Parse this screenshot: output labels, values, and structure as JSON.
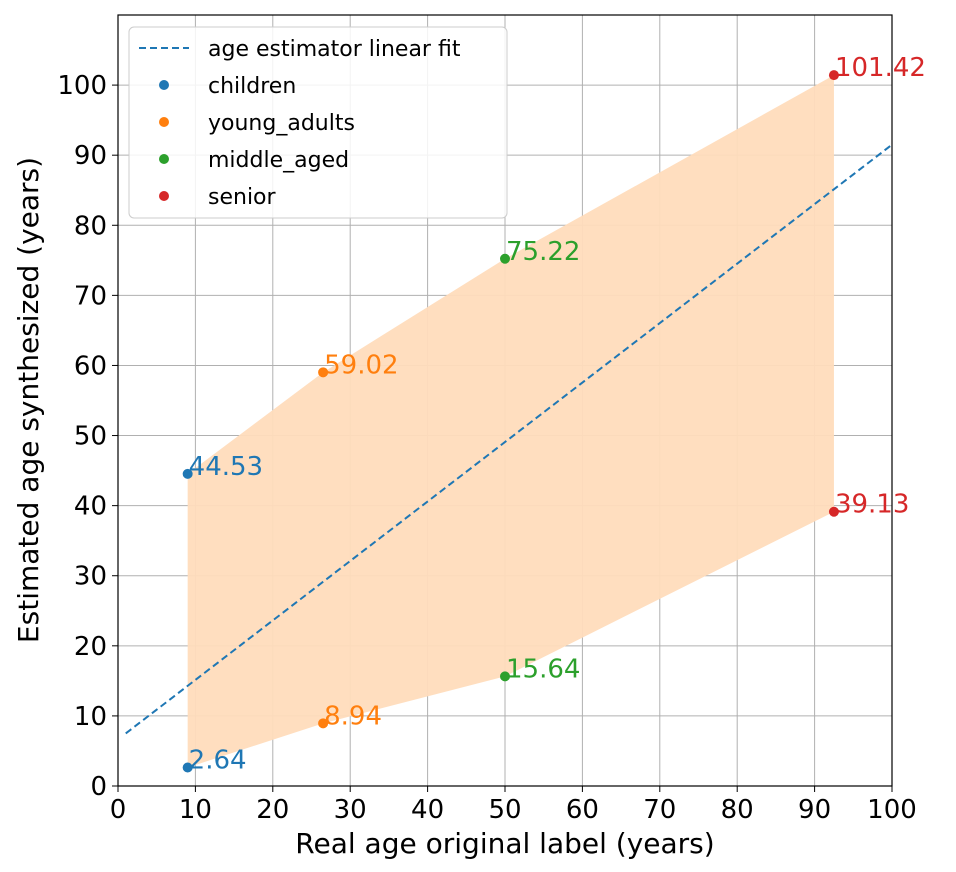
{
  "chart_data": {
    "type": "scatter",
    "title": "",
    "xlabel": "Real age original label (years)",
    "ylabel": "Estimated age synthesized (years)",
    "xlim": [
      0,
      100
    ],
    "ylim": [
      0,
      110
    ],
    "xticks": [
      0,
      10,
      20,
      30,
      40,
      50,
      60,
      70,
      80,
      90,
      100
    ],
    "yticks": [
      0,
      10,
      20,
      30,
      40,
      50,
      60,
      70,
      80,
      90,
      100
    ],
    "grid": true,
    "legend_position": "top-left",
    "fit_line": {
      "name": "age estimator linear fit",
      "color": "#1f77b4",
      "style": "dashed",
      "points": [
        [
          1,
          7.5
        ],
        [
          100,
          91.5
        ]
      ]
    },
    "band": {
      "color": "#ffdcbc",
      "upper": [
        [
          9,
          44.53
        ],
        [
          26.5,
          59.02
        ],
        [
          50,
          75.22
        ],
        [
          92.5,
          101.42
        ]
      ],
      "lower": [
        [
          9,
          2.64
        ],
        [
          26.5,
          8.94
        ],
        [
          50,
          15.64
        ],
        [
          92.5,
          39.13
        ]
      ]
    },
    "series": [
      {
        "name": "children",
        "color": "#1f77b4",
        "x": [
          9,
          9
        ],
        "y": [
          44.53,
          2.64
        ],
        "labels": [
          "44.53",
          "2.64"
        ]
      },
      {
        "name": "young_adults",
        "color": "#ff7f0e",
        "x": [
          26.5,
          26.5
        ],
        "y": [
          59.02,
          8.94
        ],
        "labels": [
          "59.02",
          "8.94"
        ]
      },
      {
        "name": "middle_aged",
        "color": "#2ca02c",
        "x": [
          50,
          50
        ],
        "y": [
          75.22,
          15.64
        ],
        "labels": [
          "75.22",
          "15.64"
        ]
      },
      {
        "name": "senior",
        "color": "#d62728",
        "x": [
          92.5,
          92.5
        ],
        "y": [
          101.42,
          39.13
        ],
        "labels": [
          "101.42",
          "39.13"
        ]
      }
    ]
  }
}
